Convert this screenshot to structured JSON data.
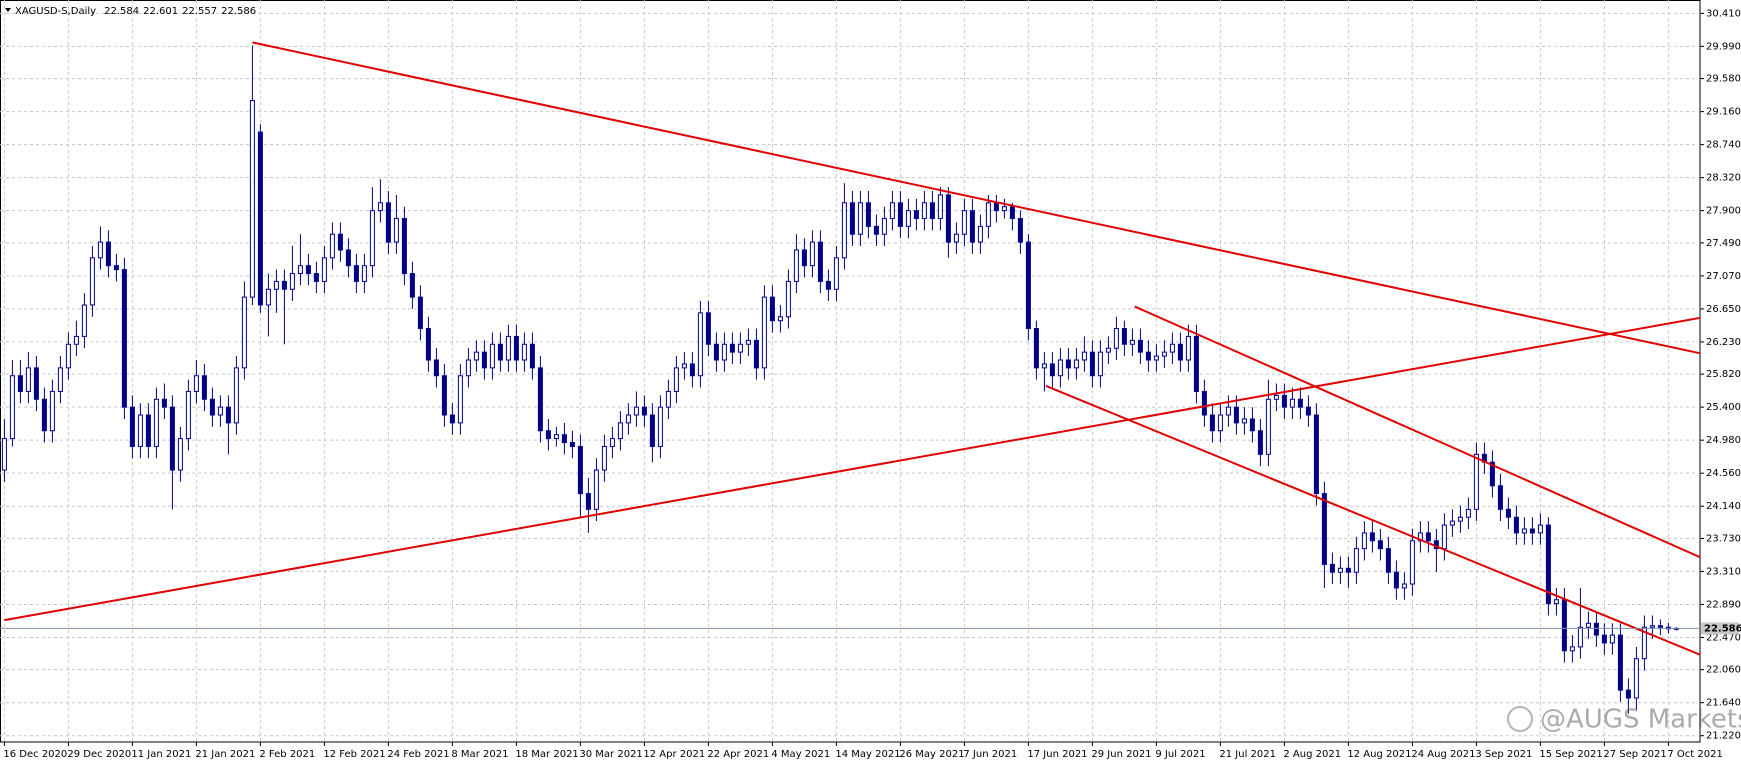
{
  "chart_data": {
    "type": "candlestick",
    "title": "XAGUSD-S,Daily",
    "watermark": "@AUGS Markets",
    "candle_color": "#00008b",
    "grid": true,
    "ylim": [
      21.14,
      30.58
    ],
    "yticks": [
      {
        "value": 30.41,
        "label": "30.410"
      },
      {
        "value": 29.99,
        "label": "29.990"
      },
      {
        "value": 29.58,
        "label": "29.580"
      },
      {
        "value": 29.16,
        "label": "29.160"
      },
      {
        "value": 28.74,
        "label": "28.740"
      },
      {
        "value": 28.32,
        "label": "28.320"
      },
      {
        "value": 27.9,
        "label": "27.900"
      },
      {
        "value": 27.49,
        "label": "27.490"
      },
      {
        "value": 27.07,
        "label": "27.070"
      },
      {
        "value": 26.65,
        "label": "26.650"
      },
      {
        "value": 26.23,
        "label": "26.230"
      },
      {
        "value": 25.82,
        "label": "25.820"
      },
      {
        "value": 25.4,
        "label": "25.400"
      },
      {
        "value": 24.98,
        "label": "24.980"
      },
      {
        "value": 24.56,
        "label": "24.560"
      },
      {
        "value": 24.14,
        "label": "24.140"
      },
      {
        "value": 23.73,
        "label": "23.730"
      },
      {
        "value": 23.31,
        "label": "23.310"
      },
      {
        "value": 22.89,
        "label": "22.890"
      },
      {
        "value": 22.47,
        "label": "22.470"
      },
      {
        "value": 22.06,
        "label": "22.060"
      },
      {
        "value": 21.64,
        "label": "21.640"
      },
      {
        "value": 21.22,
        "label": "21.220"
      }
    ],
    "xticks": [
      {
        "value": 0,
        "label": "16 Dec 2020"
      },
      {
        "value": 8,
        "label": "29 Dec 2020"
      },
      {
        "value": 16,
        "label": "11 Jan 2021"
      },
      {
        "value": 24,
        "label": "21 Jan 2021"
      },
      {
        "value": 32,
        "label": "2 Feb 2021"
      },
      {
        "value": 40,
        "label": "12 Feb 2021"
      },
      {
        "value": 48,
        "label": "24 Feb 2021"
      },
      {
        "value": 56,
        "label": "8 Mar 2021"
      },
      {
        "value": 64,
        "label": "18 Mar 2021"
      },
      {
        "value": 72,
        "label": "30 Mar 2021"
      },
      {
        "value": 80,
        "label": "12 Apr 2021"
      },
      {
        "value": 88,
        "label": "22 Apr 2021"
      },
      {
        "value": 96,
        "label": "4 May 2021"
      },
      {
        "value": 104,
        "label": "14 May 2021"
      },
      {
        "value": 112,
        "label": "26 May 2021"
      },
      {
        "value": 120,
        "label": "7 Jun 2021"
      },
      {
        "value": 128,
        "label": "17 Jun 2021"
      },
      {
        "value": 136,
        "label": "29 Jun 2021"
      },
      {
        "value": 144,
        "label": "9 Jul 2021"
      },
      {
        "value": 152,
        "label": "21 Jul 2021"
      },
      {
        "value": 160,
        "label": "2 Aug 2021"
      },
      {
        "value": 168,
        "label": "12 Aug 2021"
      },
      {
        "value": 176,
        "label": "24 Aug 2021"
      },
      {
        "value": 184,
        "label": "3 Sep 2021"
      },
      {
        "value": 192,
        "label": "15 Sep 2021"
      },
      {
        "value": 200,
        "label": "27 Sep 2021"
      },
      {
        "value": 208,
        "label": "7 Oct 2021"
      }
    ],
    "price_line": 22.586,
    "trendlines": [
      {
        "color": "#e00000",
        "x": [
          31,
          212.2
        ],
        "y": [
          30.04,
          26.08
        ]
      },
      {
        "color": "#e00000",
        "x": [
          0,
          212.2
        ],
        "y": [
          22.69,
          26.54
        ]
      },
      {
        "color": "#e00000",
        "x": [
          141.3,
          212.2
        ],
        "y": [
          26.68,
          23.48
        ]
      },
      {
        "color": "#e00000",
        "x": [
          130.2,
          212.2
        ],
        "y": [
          25.67,
          22.24
        ]
      }
    ],
    "candles": [
      [
        24.6,
        25.25,
        24.45,
        25.0
      ],
      [
        25.0,
        26.0,
        24.9,
        25.8
      ],
      [
        25.8,
        26.0,
        25.45,
        25.6
      ],
      [
        25.6,
        26.1,
        25.45,
        25.9
      ],
      [
        25.9,
        26.05,
        25.35,
        25.5
      ],
      [
        25.5,
        25.65,
        24.95,
        25.1
      ],
      [
        25.1,
        25.75,
        24.95,
        25.6
      ],
      [
        25.6,
        26.05,
        25.45,
        25.9
      ],
      [
        25.9,
        26.35,
        25.75,
        26.2
      ],
      [
        26.2,
        26.5,
        26.05,
        26.3
      ],
      [
        26.3,
        26.85,
        26.15,
        26.7
      ],
      [
        26.7,
        27.45,
        26.55,
        27.3
      ],
      [
        27.3,
        27.7,
        27.15,
        27.5
      ],
      [
        27.5,
        27.65,
        27.05,
        27.2
      ],
      [
        27.2,
        27.35,
        27.0,
        27.15
      ],
      [
        27.15,
        27.3,
        25.25,
        25.4
      ],
      [
        25.4,
        25.55,
        24.75,
        24.9
      ],
      [
        24.9,
        25.45,
        24.75,
        25.3
      ],
      [
        25.3,
        25.45,
        24.75,
        24.9
      ],
      [
        24.9,
        25.65,
        24.75,
        25.5
      ],
      [
        25.5,
        25.7,
        25.25,
        25.4
      ],
      [
        25.4,
        25.55,
        24.1,
        24.6
      ],
      [
        24.6,
        25.15,
        24.45,
        25.0
      ],
      [
        25.0,
        25.75,
        24.85,
        25.6
      ],
      [
        25.6,
        26.0,
        25.45,
        25.8
      ],
      [
        25.8,
        25.95,
        25.35,
        25.5
      ],
      [
        25.5,
        25.65,
        25.15,
        25.3
      ],
      [
        25.3,
        25.55,
        25.15,
        25.4
      ],
      [
        25.4,
        25.55,
        24.8,
        25.2
      ],
      [
        25.2,
        26.05,
        25.05,
        25.9
      ],
      [
        25.9,
        27.0,
        25.75,
        26.8
      ],
      [
        26.8,
        30.0,
        26.7,
        29.3
      ],
      [
        28.9,
        29.0,
        26.6,
        26.7
      ],
      [
        26.7,
        27.1,
        26.3,
        26.9
      ],
      [
        26.9,
        27.15,
        26.6,
        27.0
      ],
      [
        27.0,
        27.15,
        26.2,
        26.9
      ],
      [
        26.9,
        27.45,
        26.75,
        27.1
      ],
      [
        27.1,
        27.6,
        26.95,
        27.2
      ],
      [
        27.2,
        27.35,
        26.95,
        27.1
      ],
      [
        27.1,
        27.25,
        26.85,
        27.0
      ],
      [
        27.0,
        27.45,
        26.85,
        27.3
      ],
      [
        27.3,
        27.75,
        27.15,
        27.6
      ],
      [
        27.6,
        27.75,
        27.25,
        27.4
      ],
      [
        27.4,
        27.55,
        27.05,
        27.2
      ],
      [
        27.2,
        27.35,
        26.85,
        27.0
      ],
      [
        27.0,
        27.35,
        26.85,
        27.2
      ],
      [
        27.2,
        28.2,
        27.05,
        27.9
      ],
      [
        27.9,
        28.3,
        27.75,
        28.0
      ],
      [
        28.0,
        28.15,
        27.35,
        27.5
      ],
      [
        27.5,
        28.1,
        27.35,
        27.8
      ],
      [
        27.8,
        27.95,
        26.95,
        27.1
      ],
      [
        27.1,
        27.25,
        26.65,
        26.8
      ],
      [
        26.8,
        26.95,
        26.25,
        26.4
      ],
      [
        26.4,
        26.55,
        25.85,
        26.0
      ],
      [
        26.0,
        26.15,
        25.65,
        25.8
      ],
      [
        25.8,
        25.95,
        25.15,
        25.3
      ],
      [
        25.3,
        25.45,
        25.05,
        25.2
      ],
      [
        25.2,
        25.95,
        25.05,
        25.8
      ],
      [
        25.8,
        26.15,
        25.65,
        26.0
      ],
      [
        26.0,
        26.25,
        25.85,
        26.1
      ],
      [
        26.1,
        26.25,
        25.75,
        25.9
      ],
      [
        25.9,
        26.35,
        25.75,
        26.2
      ],
      [
        26.2,
        26.35,
        25.85,
        26.0
      ],
      [
        26.0,
        26.45,
        25.85,
        26.3
      ],
      [
        26.3,
        26.45,
        25.85,
        26.0
      ],
      [
        26.0,
        26.35,
        25.85,
        26.2
      ],
      [
        26.2,
        26.35,
        25.75,
        25.9
      ],
      [
        25.9,
        26.05,
        24.95,
        25.1
      ],
      [
        25.1,
        25.25,
        24.85,
        25.0
      ],
      [
        25.0,
        25.15,
        24.9,
        25.05
      ],
      [
        25.05,
        25.2,
        24.8,
        24.95
      ],
      [
        24.95,
        25.1,
        24.75,
        24.9
      ],
      [
        24.9,
        25.05,
        24.0,
        24.3
      ],
      [
        24.3,
        24.5,
        23.8,
        24.1
      ],
      [
        24.1,
        24.75,
        23.95,
        24.6
      ],
      [
        24.6,
        25.05,
        24.45,
        24.9
      ],
      [
        24.9,
        25.15,
        24.75,
        25.0
      ],
      [
        25.0,
        25.35,
        24.85,
        25.2
      ],
      [
        25.2,
        25.45,
        25.05,
        25.3
      ],
      [
        25.3,
        25.6,
        25.15,
        25.4
      ],
      [
        25.4,
        25.55,
        25.15,
        25.3
      ],
      [
        25.3,
        25.45,
        24.7,
        24.9
      ],
      [
        24.9,
        25.55,
        24.75,
        25.4
      ],
      [
        25.4,
        25.75,
        25.25,
        25.6
      ],
      [
        25.6,
        26.05,
        25.45,
        25.9
      ],
      [
        25.9,
        26.1,
        25.75,
        25.95
      ],
      [
        25.95,
        26.1,
        25.65,
        25.8
      ],
      [
        25.8,
        26.75,
        25.65,
        26.6
      ],
      [
        26.6,
        26.75,
        26.05,
        26.2
      ],
      [
        26.2,
        26.35,
        25.85,
        26.0
      ],
      [
        26.0,
        26.35,
        25.85,
        26.2
      ],
      [
        26.2,
        26.35,
        25.95,
        26.1
      ],
      [
        26.1,
        26.35,
        25.95,
        26.2
      ],
      [
        26.2,
        26.4,
        26.05,
        26.25
      ],
      [
        26.25,
        26.4,
        25.75,
        25.9
      ],
      [
        25.9,
        26.95,
        25.75,
        26.8
      ],
      [
        26.8,
        26.95,
        26.35,
        26.5
      ],
      [
        26.5,
        26.7,
        26.35,
        26.55
      ],
      [
        26.55,
        27.15,
        26.4,
        27.0
      ],
      [
        27.0,
        27.6,
        26.85,
        27.4
      ],
      [
        27.4,
        27.55,
        27.05,
        27.2
      ],
      [
        27.2,
        27.65,
        27.05,
        27.5
      ],
      [
        27.5,
        27.65,
        26.85,
        27.0
      ],
      [
        27.0,
        27.15,
        26.75,
        26.9
      ],
      [
        26.9,
        27.45,
        26.75,
        27.3
      ],
      [
        27.3,
        28.25,
        27.15,
        28.0
      ],
      [
        28.0,
        28.15,
        27.45,
        27.6
      ],
      [
        27.6,
        28.15,
        27.45,
        28.0
      ],
      [
        28.0,
        28.15,
        27.55,
        27.7
      ],
      [
        27.7,
        27.85,
        27.45,
        27.6
      ],
      [
        27.6,
        27.95,
        27.45,
        27.8
      ],
      [
        27.8,
        28.15,
        27.65,
        28.0
      ],
      [
        28.0,
        28.15,
        27.55,
        27.7
      ],
      [
        27.7,
        28.05,
        27.55,
        27.9
      ],
      [
        27.9,
        28.05,
        27.65,
        27.8
      ],
      [
        27.8,
        28.15,
        27.65,
        28.0
      ],
      [
        28.0,
        28.15,
        27.65,
        27.8
      ],
      [
        27.8,
        28.2,
        27.65,
        28.1
      ],
      [
        28.1,
        28.2,
        27.3,
        27.5
      ],
      [
        27.5,
        27.75,
        27.35,
        27.6
      ],
      [
        27.6,
        28.05,
        27.45,
        27.9
      ],
      [
        27.9,
        28.05,
        27.35,
        27.5
      ],
      [
        27.5,
        27.85,
        27.35,
        27.7
      ],
      [
        27.7,
        28.1,
        27.55,
        28.0
      ],
      [
        28.0,
        28.1,
        27.75,
        27.9
      ],
      [
        27.9,
        28.05,
        27.8,
        27.95
      ],
      [
        27.95,
        28.0,
        27.65,
        27.8
      ],
      [
        27.8,
        27.9,
        27.35,
        27.5
      ],
      [
        27.5,
        27.6,
        26.25,
        26.4
      ],
      [
        26.4,
        26.5,
        25.75,
        25.9
      ],
      [
        25.9,
        26.1,
        25.6,
        25.95
      ],
      [
        25.95,
        26.1,
        25.65,
        25.8
      ],
      [
        25.8,
        26.15,
        25.65,
        26.0
      ],
      [
        26.0,
        26.15,
        25.75,
        25.9
      ],
      [
        25.9,
        26.15,
        25.75,
        26.0
      ],
      [
        26.0,
        26.3,
        25.85,
        26.1
      ],
      [
        26.1,
        26.25,
        25.65,
        25.8
      ],
      [
        25.8,
        26.25,
        25.65,
        26.1
      ],
      [
        26.1,
        26.3,
        25.95,
        26.15
      ],
      [
        26.15,
        26.55,
        26.0,
        26.4
      ],
      [
        26.4,
        26.5,
        26.05,
        26.2
      ],
      [
        26.2,
        26.4,
        26.05,
        26.25
      ],
      [
        26.25,
        26.4,
        25.95,
        26.1
      ],
      [
        26.1,
        26.25,
        25.85,
        26.0
      ],
      [
        26.0,
        26.2,
        25.85,
        26.05
      ],
      [
        26.05,
        26.25,
        25.9,
        26.1
      ],
      [
        26.1,
        26.35,
        25.95,
        26.2
      ],
      [
        26.2,
        26.35,
        25.85,
        26.0
      ],
      [
        26.0,
        26.45,
        25.85,
        26.3
      ],
      [
        26.3,
        26.45,
        25.45,
        25.6
      ],
      [
        25.6,
        25.75,
        25.15,
        25.3
      ],
      [
        25.3,
        25.45,
        24.95,
        25.1
      ],
      [
        25.1,
        25.45,
        24.95,
        25.3
      ],
      [
        25.3,
        25.55,
        25.15,
        25.4
      ],
      [
        25.4,
        25.55,
        25.05,
        25.2
      ],
      [
        25.2,
        25.4,
        25.05,
        25.25
      ],
      [
        25.25,
        25.4,
        24.95,
        25.1
      ],
      [
        25.1,
        25.25,
        24.65,
        24.8
      ],
      [
        24.8,
        25.75,
        24.65,
        25.5
      ],
      [
        25.5,
        25.7,
        25.35,
        25.55
      ],
      [
        25.55,
        25.7,
        25.25,
        25.4
      ],
      [
        25.4,
        25.65,
        25.25,
        25.5
      ],
      [
        25.5,
        25.65,
        25.25,
        25.4
      ],
      [
        25.4,
        25.55,
        25.15,
        25.3
      ],
      [
        25.3,
        25.45,
        24.15,
        24.3
      ],
      [
        24.3,
        24.45,
        23.1,
        23.4
      ],
      [
        23.4,
        23.55,
        23.15,
        23.3
      ],
      [
        23.3,
        23.5,
        23.15,
        23.35
      ],
      [
        23.35,
        23.5,
        23.1,
        23.3
      ],
      [
        23.3,
        23.75,
        23.15,
        23.6
      ],
      [
        23.6,
        23.95,
        23.45,
        23.8
      ],
      [
        23.8,
        23.95,
        23.55,
        23.7
      ],
      [
        23.7,
        23.85,
        23.45,
        23.6
      ],
      [
        23.6,
        23.75,
        23.15,
        23.3
      ],
      [
        23.3,
        23.45,
        22.95,
        23.1
      ],
      [
        23.1,
        23.3,
        22.95,
        23.15
      ],
      [
        23.15,
        23.85,
        23.0,
        23.7
      ],
      [
        23.7,
        23.95,
        23.55,
        23.8
      ],
      [
        23.8,
        23.95,
        23.55,
        23.7
      ],
      [
        23.7,
        23.85,
        23.3,
        23.6
      ],
      [
        23.6,
        24.05,
        23.45,
        23.9
      ],
      [
        23.9,
        24.1,
        23.75,
        23.95
      ],
      [
        23.95,
        24.15,
        23.8,
        24.0
      ],
      [
        24.0,
        24.25,
        23.85,
        24.1
      ],
      [
        24.1,
        24.95,
        23.95,
        24.8
      ],
      [
        24.8,
        24.95,
        24.55,
        24.7
      ],
      [
        24.7,
        24.85,
        24.25,
        24.4
      ],
      [
        24.4,
        24.55,
        23.95,
        24.1
      ],
      [
        24.1,
        24.25,
        23.85,
        24.0
      ],
      [
        24.0,
        24.15,
        23.65,
        23.8
      ],
      [
        23.8,
        24.0,
        23.65,
        23.85
      ],
      [
        23.85,
        24.0,
        23.65,
        23.8
      ],
      [
        23.8,
        24.05,
        23.65,
        23.9
      ],
      [
        23.9,
        24.0,
        22.75,
        22.9
      ],
      [
        22.9,
        23.1,
        22.75,
        22.95
      ],
      [
        22.95,
        23.1,
        22.15,
        22.3
      ],
      [
        22.3,
        22.5,
        22.15,
        22.35
      ],
      [
        22.35,
        23.1,
        22.2,
        22.6
      ],
      [
        22.6,
        22.8,
        22.45,
        22.65
      ],
      [
        22.65,
        22.8,
        22.35,
        22.5
      ],
      [
        22.5,
        22.65,
        22.25,
        22.4
      ],
      [
        22.4,
        22.65,
        22.25,
        22.5
      ],
      [
        22.5,
        22.65,
        21.65,
        21.8
      ],
      [
        21.8,
        21.95,
        21.5,
        21.7
      ],
      [
        21.7,
        22.35,
        21.55,
        22.2
      ],
      [
        22.2,
        22.75,
        22.05,
        22.6
      ],
      [
        22.6,
        22.75,
        22.45,
        22.62
      ],
      [
        22.62,
        22.7,
        22.5,
        22.6
      ],
      [
        22.6,
        22.66,
        22.52,
        22.58
      ],
      [
        22.584,
        22.601,
        22.557,
        22.586
      ]
    ]
  }
}
